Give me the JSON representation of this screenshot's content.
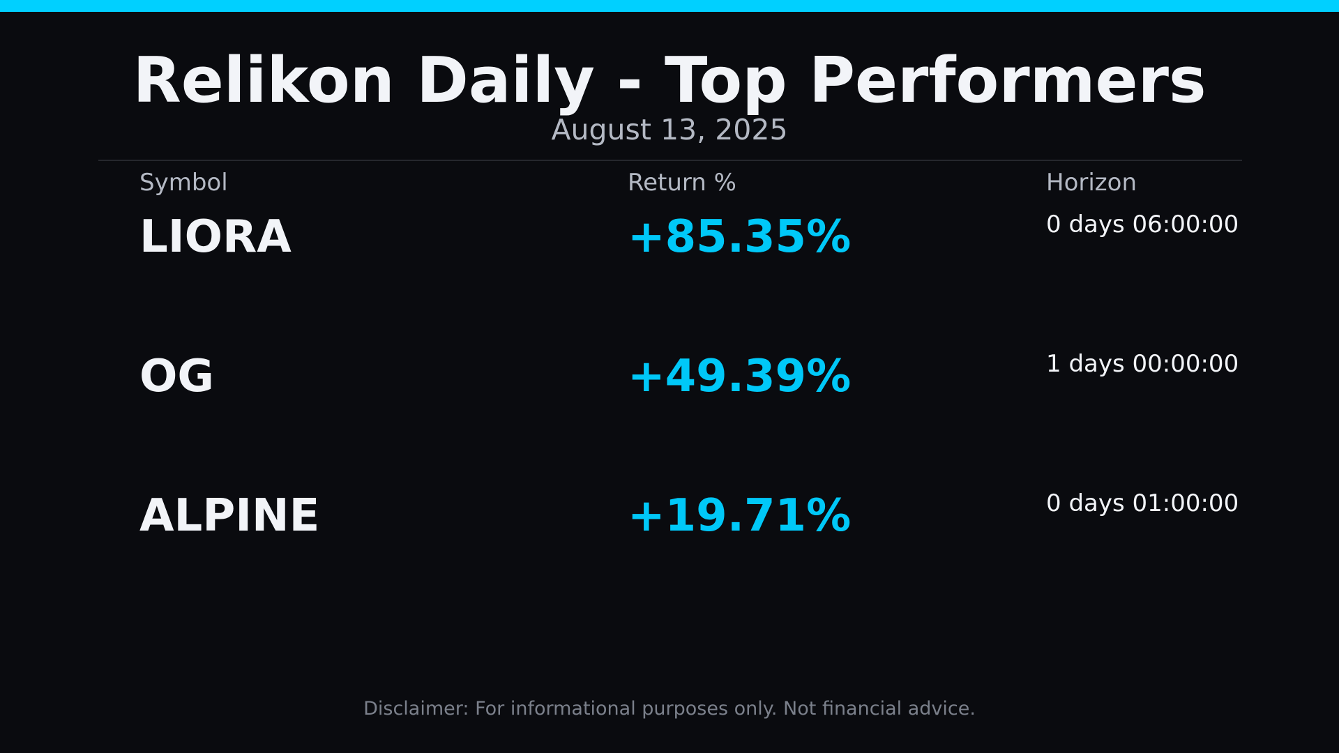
{
  "header": {
    "title": "Relikon Daily - Top Performers",
    "date": "August 13, 2025"
  },
  "table": {
    "columns": [
      "Symbol",
      "Return %",
      "Horizon"
    ],
    "rows": [
      {
        "symbol": "LIORA",
        "return": "+85.35%",
        "horizon": "0 days 06:00:00"
      },
      {
        "symbol": "OG",
        "return": "+49.39%",
        "horizon": "1 days 00:00:00"
      },
      {
        "symbol": "ALPINE",
        "return": "+19.71%",
        "horizon": "0 days 01:00:00"
      }
    ]
  },
  "footer": {
    "disclaimer": "Disclaimer: For informational purposes only. Not financial advice."
  },
  "colors": {
    "background": "#0a0b0f",
    "accent": "#00d0ff",
    "positive_return": "#00c8f8",
    "primary_text": "#f2f4f8",
    "secondary_text": "#b4b9c4"
  }
}
